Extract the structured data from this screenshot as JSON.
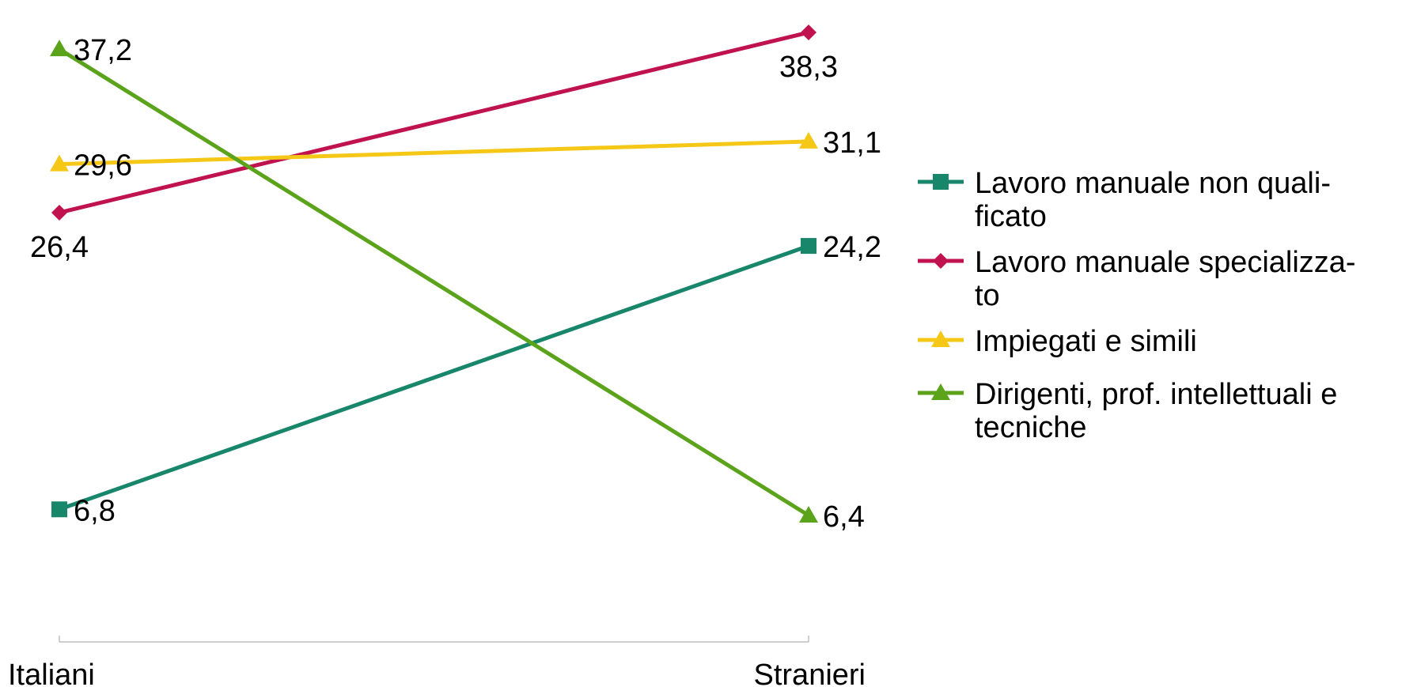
{
  "chart_data": {
    "type": "line",
    "title": "",
    "xlabel": "",
    "ylabel": "",
    "categories": [
      "Italiani",
      "Stranieri"
    ],
    "ylim": [
      0,
      40
    ],
    "grid": false,
    "legend_position": "right",
    "series": [
      {
        "name": "Lavoro manuale non quali-ficato",
        "values": [
          6.8,
          24.2
        ],
        "labels": [
          "6,8",
          "24,2"
        ],
        "color": "#17866a",
        "marker": "square"
      },
      {
        "name": "Lavoro manuale specializza-to",
        "values": [
          26.4,
          38.3
        ],
        "labels": [
          "26,4",
          "38,3"
        ],
        "color": "#c0124f",
        "marker": "diamond"
      },
      {
        "name": "Impiegati e simili",
        "values": [
          29.6,
          31.1
        ],
        "labels": [
          "29,6",
          "31,1"
        ],
        "color": "#f5c716",
        "marker": "triangle"
      },
      {
        "name": "Dirigenti, prof. intellettuali e tecniche",
        "values": [
          37.2,
          6.4
        ],
        "labels": [
          "37,2",
          "6,4"
        ],
        "color": "#5ca31c",
        "marker": "triangle"
      }
    ]
  }
}
